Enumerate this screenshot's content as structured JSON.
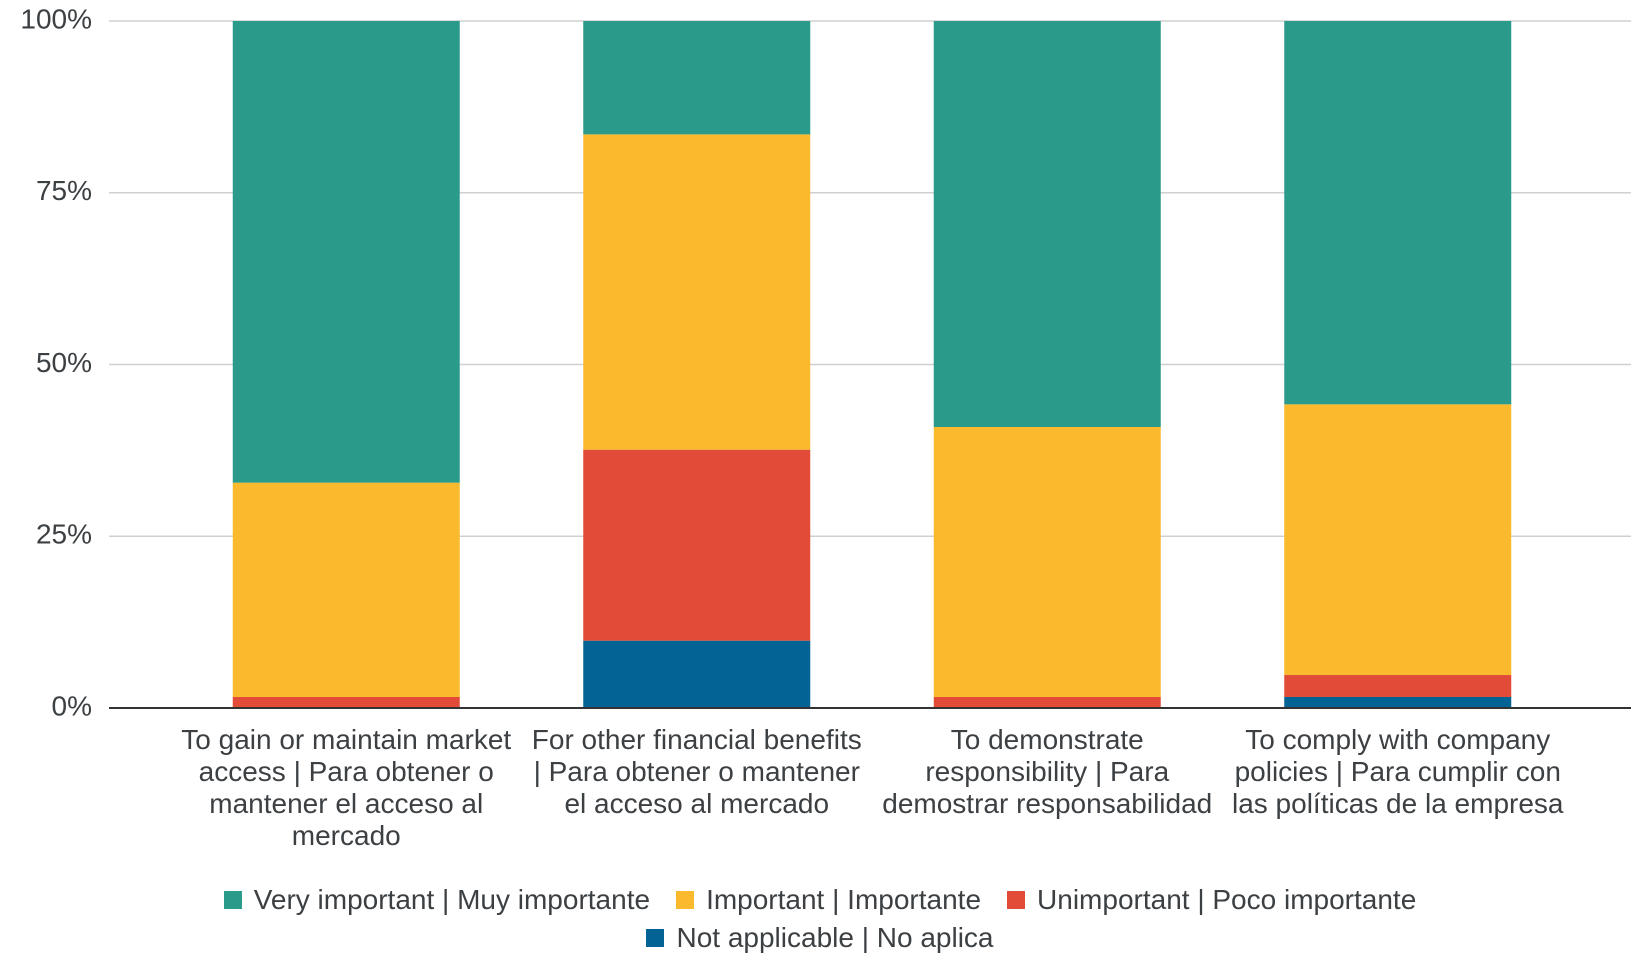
{
  "chart_data": {
    "type": "stacked_bar_100",
    "categories": [
      "To gain or maintain market access | Para obtener o mantener el acceso al mercado",
      "For other financial benefits | Para obtener o mantener el acceso al mercado",
      "To demonstrate responsibility | Para demostrar responsabilidad",
      "To comply with company policies | Para cumplir con las políticas de la empresa"
    ],
    "series": [
      {
        "name": "Very important | Muy importante",
        "color": "#2a9a8b",
        "values": [
          67.2,
          16.5,
          59.1,
          55.8
        ]
      },
      {
        "name": "Important | Importante",
        "color": "#fbb92d",
        "values": [
          31.2,
          45.9,
          39.3,
          39.4
        ]
      },
      {
        "name": "Unimportant | Poco importante",
        "color": "#e24b38",
        "values": [
          1.6,
          27.8,
          1.6,
          3.2
        ]
      },
      {
        "name": "Not applicable | No aplica",
        "color": "#036394",
        "values": [
          0,
          9.8,
          0,
          1.6
        ]
      }
    ],
    "ylim": [
      0,
      100
    ],
    "yticks": [
      {
        "value": 0,
        "label": "0%"
      },
      {
        "value": 25,
        "label": "25%"
      },
      {
        "value": 50,
        "label": "50%"
      },
      {
        "value": 75,
        "label": "75%"
      },
      {
        "value": 100,
        "label": "100%"
      }
    ],
    "grid": true,
    "legend": "bottom"
  }
}
